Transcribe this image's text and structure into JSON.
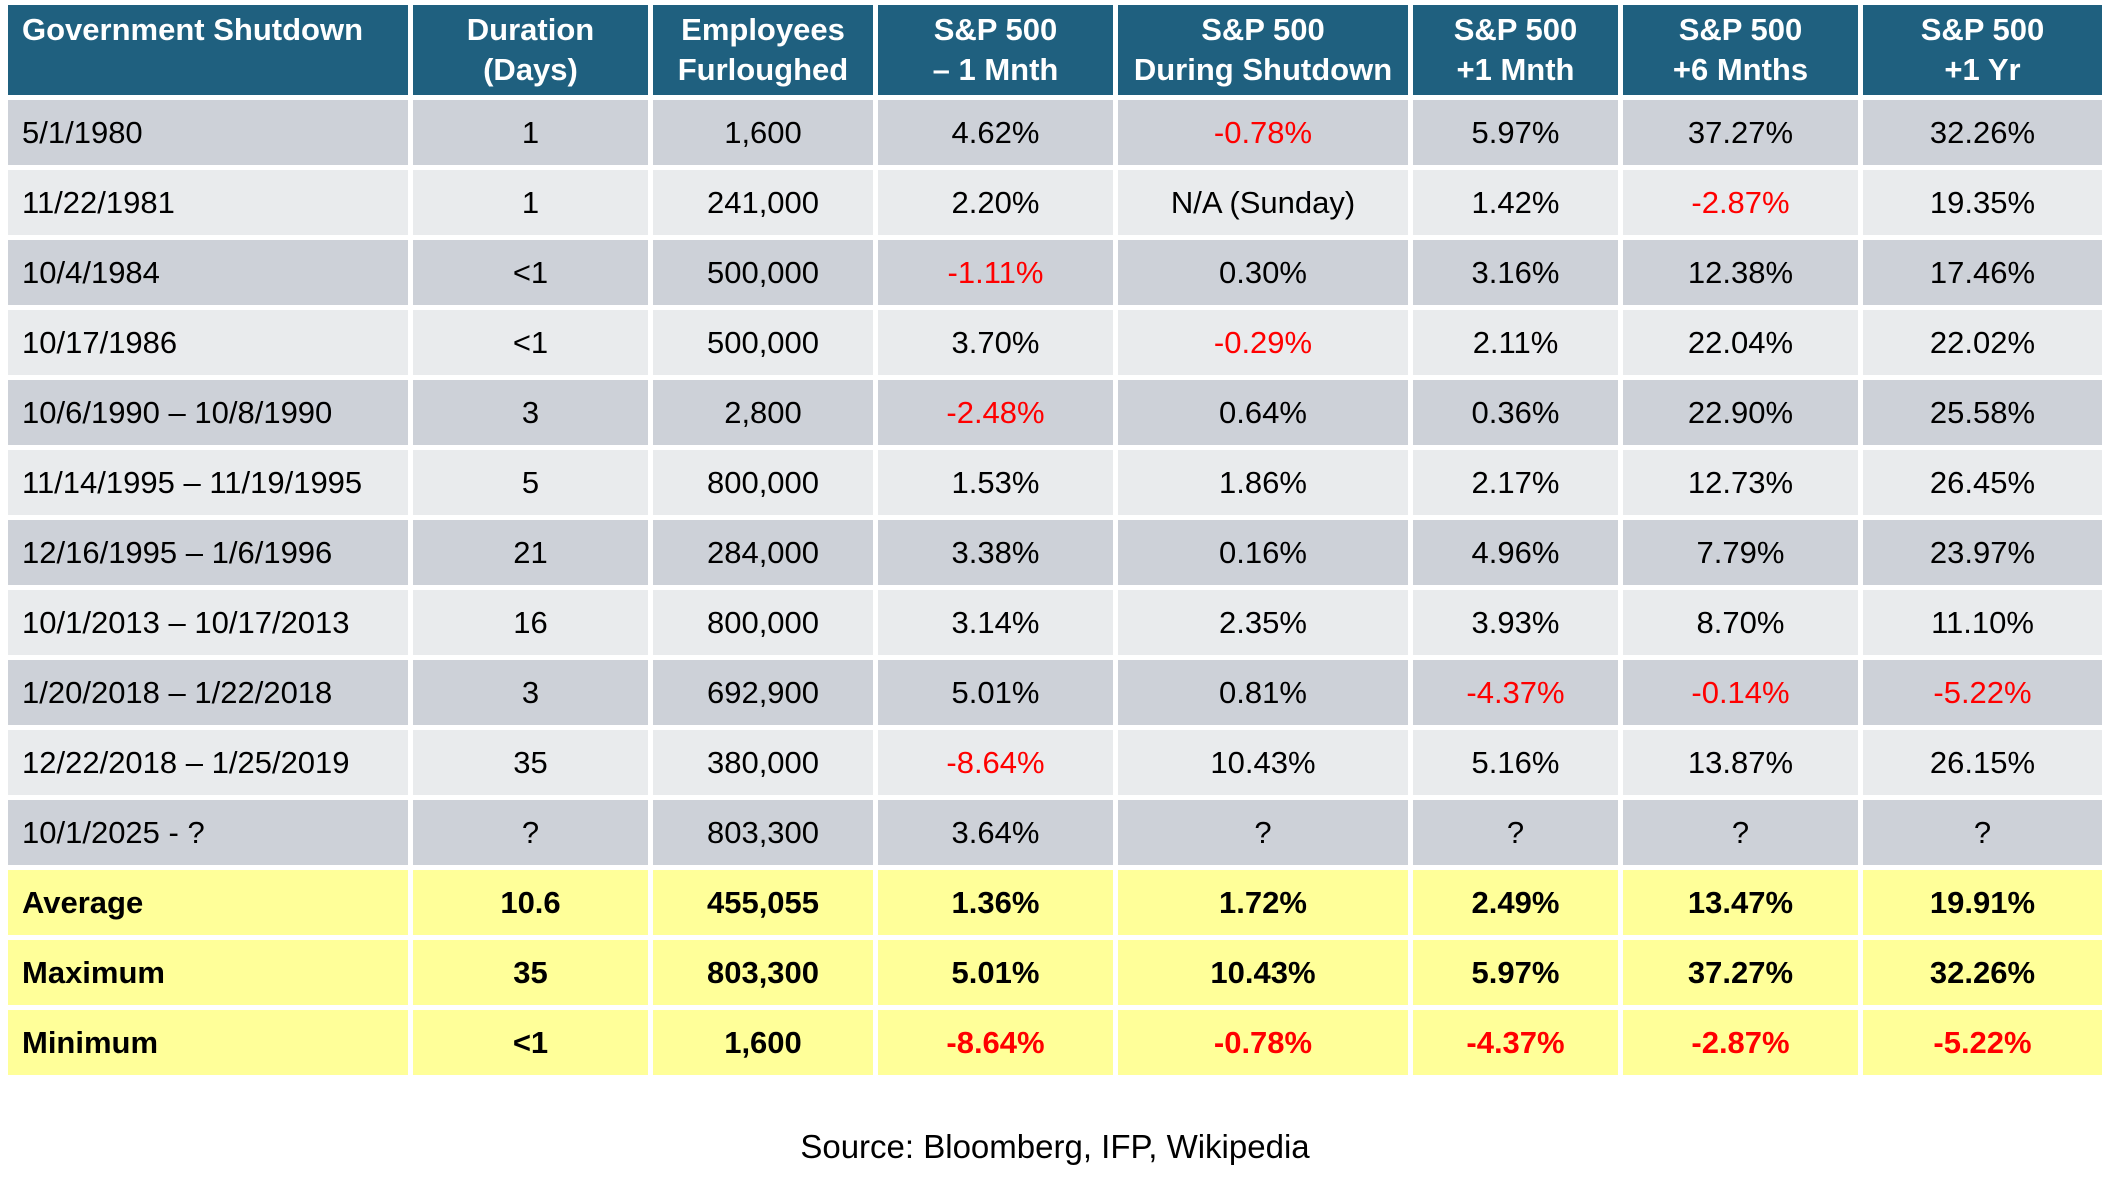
{
  "colors": {
    "header_bg": "#1F607F",
    "header_text": "#FFFFFF",
    "row_dark": "#CDD1D8",
    "row_light": "#E9EBED",
    "summary_bg": "#FFFF99",
    "negative_text": "#FF0000",
    "body_text": "#000000"
  },
  "footer": {
    "source": "Source: Bloomberg, IFP, Wikipedia"
  },
  "chart_data": {
    "type": "table",
    "columns": [
      {
        "line1": "Government Shutdown",
        "line2": ""
      },
      {
        "line1": "Duration",
        "line2": "(Days)"
      },
      {
        "line1": "Employees",
        "line2": "Furloughed"
      },
      {
        "line1": "S&P 500",
        "line2": "– 1 Mnth"
      },
      {
        "line1": "S&P 500",
        "line2": "During Shutdown"
      },
      {
        "line1": "S&P 500",
        "line2": "+1 Mnth"
      },
      {
        "line1": "S&P 500",
        "line2": "+6 Mnths"
      },
      {
        "line1": "S&P 500",
        "line2": "+1 Yr"
      }
    ],
    "rows": [
      [
        "5/1/1980",
        "1",
        "1,600",
        "4.62%",
        "-0.78%",
        "5.97%",
        "37.27%",
        "32.26%"
      ],
      [
        "11/22/1981",
        "1",
        "241,000",
        "2.20%",
        "N/A (Sunday)",
        "1.42%",
        "-2.87%",
        "19.35%"
      ],
      [
        "10/4/1984",
        "<1",
        "500,000",
        "-1.11%",
        "0.30%",
        "3.16%",
        "12.38%",
        "17.46%"
      ],
      [
        "10/17/1986",
        "<1",
        "500,000",
        "3.70%",
        "-0.29%",
        "2.11%",
        "22.04%",
        "22.02%"
      ],
      [
        "10/6/1990 – 10/8/1990",
        "3",
        "2,800",
        "-2.48%",
        "0.64%",
        "0.36%",
        "22.90%",
        "25.58%"
      ],
      [
        "11/14/1995 – 11/19/1995",
        "5",
        "800,000",
        "1.53%",
        "1.86%",
        "2.17%",
        "12.73%",
        "26.45%"
      ],
      [
        "12/16/1995 – 1/6/1996",
        "21",
        "284,000",
        "3.38%",
        "0.16%",
        "4.96%",
        "7.79%",
        "23.97%"
      ],
      [
        "10/1/2013 – 10/17/2013",
        "16",
        "800,000",
        "3.14%",
        "2.35%",
        "3.93%",
        "8.70%",
        "11.10%"
      ],
      [
        "1/20/2018 – 1/22/2018",
        "3",
        "692,900",
        "5.01%",
        "0.81%",
        "-4.37%",
        "-0.14%",
        "-5.22%"
      ],
      [
        "12/22/2018 – 1/25/2019",
        "35",
        "380,000",
        "-8.64%",
        "10.43%",
        "5.16%",
        "13.87%",
        "26.15%"
      ],
      [
        "10/1/2025 - ?",
        "?",
        "803,300",
        "3.64%",
        "?",
        "?",
        "?",
        "?"
      ]
    ],
    "summary_rows": [
      [
        "Average",
        "10.6",
        "455,055",
        "1.36%",
        "1.72%",
        "2.49%",
        "13.47%",
        "19.91%"
      ],
      [
        "Maximum",
        "35",
        "803,300",
        "5.01%",
        "10.43%",
        "5.97%",
        "37.27%",
        "32.26%"
      ],
      [
        "Minimum",
        "<1",
        "1,600",
        "-8.64%",
        "-0.78%",
        "-4.37%",
        "-2.87%",
        "-5.22%"
      ]
    ],
    "legend_position": "none",
    "grid": "cell-gaps-white",
    "negative_values_in_red": true
  }
}
